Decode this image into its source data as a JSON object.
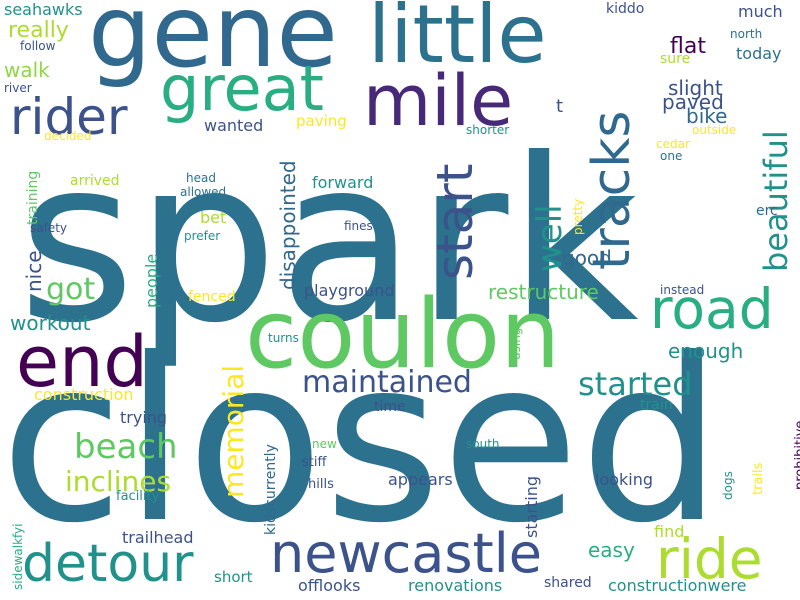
{
  "colors": {
    "c1": "#2c728e",
    "c2": "#482878",
    "c3": "#3b528b",
    "c4": "#21918c",
    "c5": "#28ae80",
    "c6": "#5ec962",
    "c7": "#addc30",
    "c8": "#fde725",
    "c9": "#440154",
    "c10": "#31688e",
    "c11": "#90d743"
  },
  "words": [
    {
      "text": "spark",
      "color": "#2c728e"
    },
    {
      "text": "closed",
      "color": "#2c728e"
    },
    {
      "text": "gene",
      "color": "#31688e"
    },
    {
      "text": "little",
      "color": "#2c728e"
    },
    {
      "text": "coulon",
      "color": "#5ec962"
    },
    {
      "text": "mile",
      "color": "#482878"
    },
    {
      "text": "great",
      "color": "#28ae80"
    },
    {
      "text": "end",
      "color": "#440154"
    },
    {
      "text": "rider",
      "color": "#3b528b"
    },
    {
      "text": "tracks",
      "color": "#31688e"
    },
    {
      "text": "start",
      "color": "#3b528b"
    },
    {
      "text": "road",
      "color": "#28ae80"
    },
    {
      "text": "newcastle",
      "color": "#3b528b"
    },
    {
      "text": "detour",
      "color": "#21918c"
    },
    {
      "text": "ride",
      "color": "#addc30"
    },
    {
      "text": "beautiful",
      "color": "#21918c"
    },
    {
      "text": "well",
      "color": "#21918c"
    },
    {
      "text": "maintained",
      "color": "#3b528b"
    },
    {
      "text": "started",
      "color": "#21918c"
    },
    {
      "text": "beach",
      "color": "#5ec962"
    },
    {
      "text": "inclines",
      "color": "#addc30"
    },
    {
      "text": "memorial",
      "color": "#fde725"
    },
    {
      "text": "got",
      "color": "#5ec962"
    },
    {
      "text": "disappointed",
      "color": "#31688e"
    },
    {
      "text": "restructure",
      "color": "#5ec962"
    },
    {
      "text": "workout",
      "color": "#21918c"
    },
    {
      "text": "good",
      "color": "#31688e"
    },
    {
      "text": "enough",
      "color": "#21918c"
    },
    {
      "text": "paved",
      "color": "#3b528b"
    },
    {
      "text": "flat",
      "color": "#440154"
    },
    {
      "text": "slight",
      "color": "#3b528b"
    },
    {
      "text": "bike",
      "color": "#31688e"
    },
    {
      "text": "really",
      "color": "#addc30"
    },
    {
      "text": "walk",
      "color": "#90d743"
    },
    {
      "text": "seahawks",
      "color": "#21918c"
    },
    {
      "text": "forward",
      "color": "#21918c"
    },
    {
      "text": "playground",
      "color": "#3b528b"
    },
    {
      "text": "people",
      "color": "#28ae80"
    },
    {
      "text": "nice",
      "color": "#3b528b"
    },
    {
      "text": "easy",
      "color": "#28ae80"
    },
    {
      "text": "much",
      "color": "#3b528b"
    },
    {
      "text": "today",
      "color": "#2c728e"
    },
    {
      "text": "sure",
      "color": "#addc30"
    },
    {
      "text": "kiddo",
      "color": "#3b528b"
    },
    {
      "text": "north",
      "color": "#2c728e"
    },
    {
      "text": "follow",
      "color": "#3b528b"
    },
    {
      "text": "river",
      "color": "#3b528b"
    },
    {
      "text": "wanted",
      "color": "#3b528b"
    },
    {
      "text": "paving",
      "color": "#fde725"
    },
    {
      "text": "decided",
      "color": "#fde725"
    },
    {
      "text": "shorter",
      "color": "#21918c"
    },
    {
      "text": "outside",
      "color": "#fde725"
    },
    {
      "text": "cedar",
      "color": "#fde725"
    },
    {
      "text": "one",
      "color": "#2c728e"
    },
    {
      "text": "t",
      "color": "#3b528b"
    },
    {
      "text": "training",
      "color": "#5ec962"
    },
    {
      "text": "arrived",
      "color": "#addc30"
    },
    {
      "text": "head",
      "color": "#2c728e"
    },
    {
      "text": "allowed",
      "color": "#2c728e"
    },
    {
      "text": "bet",
      "color": "#addc30"
    },
    {
      "text": "prefer",
      "color": "#21918c"
    },
    {
      "text": "safety",
      "color": "#3b528b"
    },
    {
      "text": "fines",
      "color": "#3b528b"
    },
    {
      "text": "pretty",
      "color": "#fde725"
    },
    {
      "text": "erc",
      "color": "#31688e"
    },
    {
      "text": "instead",
      "color": "#3b528b"
    },
    {
      "text": "fenced",
      "color": "#fde725"
    },
    {
      "text": "turns",
      "color": "#21918c"
    },
    {
      "text": "using",
      "color": "#5ec962"
    },
    {
      "text": "construction",
      "color": "#fde725"
    },
    {
      "text": "trying",
      "color": "#3b528b"
    },
    {
      "text": "time",
      "color": "#3b528b"
    },
    {
      "text": "train",
      "color": "#21918c"
    },
    {
      "text": "new",
      "color": "#5ec962"
    },
    {
      "text": "stiff",
      "color": "#3b528b"
    },
    {
      "text": "south",
      "color": "#21918c"
    },
    {
      "text": "hills",
      "color": "#3b528b"
    },
    {
      "text": "appears",
      "color": "#3b528b"
    },
    {
      "text": "looking",
      "color": "#3b528b"
    },
    {
      "text": "facility",
      "color": "#21918c"
    },
    {
      "text": "kidscurrently",
      "color": "#31688e"
    },
    {
      "text": "trailhead",
      "color": "#3b528b"
    },
    {
      "text": "starting",
      "color": "#3b528b"
    },
    {
      "text": "dogs",
      "color": "#21918c"
    },
    {
      "text": "trails",
      "color": "#fde725"
    },
    {
      "text": "prohibitive",
      "color": "#440154"
    },
    {
      "text": "find",
      "color": "#addc30"
    },
    {
      "text": "short",
      "color": "#21918c"
    },
    {
      "text": "offlooks",
      "color": "#3b528b"
    },
    {
      "text": "renovations",
      "color": "#21918c"
    },
    {
      "text": "shared",
      "color": "#3b528b"
    },
    {
      "text": "constructionwere",
      "color": "#21918c"
    },
    {
      "text": "sidewalkfyi",
      "color": "#28ae80"
    }
  ]
}
